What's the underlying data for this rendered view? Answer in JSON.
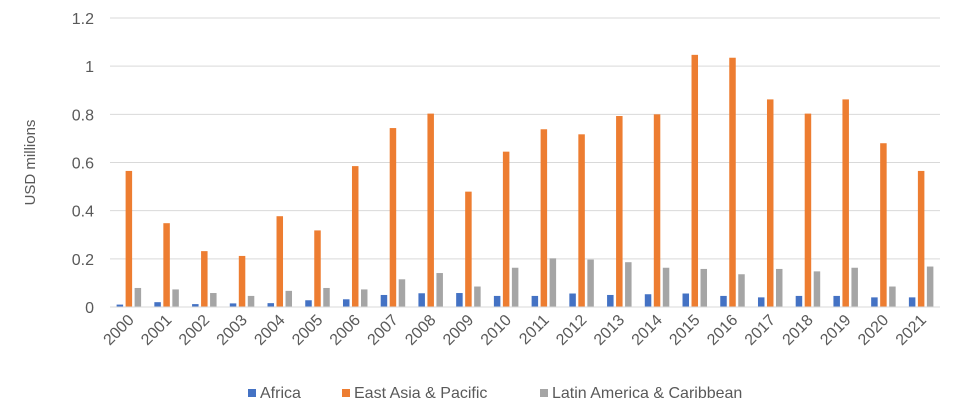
{
  "chart_data": {
    "type": "bar",
    "title": "",
    "xlabel": "",
    "ylabel": "USD millions",
    "ylim": [
      0,
      1.2
    ],
    "yticks": [
      "0",
      "0.2",
      "0.4",
      "0.6",
      "0.8",
      "1",
      "1.2"
    ],
    "ytick_values": [
      0,
      0.2,
      0.4,
      0.6,
      0.8,
      1,
      1.2
    ],
    "grid": true,
    "legend_position": "bottom",
    "categories": [
      "2000",
      "2001",
      "2002",
      "2003",
      "2004",
      "2005",
      "2006",
      "2007",
      "2008",
      "2009",
      "2010",
      "2011",
      "2012",
      "2013",
      "2014",
      "2015",
      "2016",
      "2017",
      "2018",
      "2019",
      "2020",
      "2021"
    ],
    "series": [
      {
        "name": "Africa",
        "color": "#4472C4",
        "values": [
          0.01,
          0.02,
          0.012,
          0.015,
          0.016,
          0.028,
          0.032,
          0.05,
          0.057,
          0.058,
          0.046,
          0.046,
          0.056,
          0.05,
          0.053,
          0.056,
          0.046,
          0.04,
          0.046,
          0.046,
          0.04,
          0.04
        ]
      },
      {
        "name": "East Asia & Pacific",
        "color": "#ED7D31",
        "values": [
          0.565,
          0.348,
          0.232,
          0.212,
          0.377,
          0.318,
          0.585,
          0.743,
          0.803,
          0.479,
          0.645,
          0.738,
          0.717,
          0.793,
          0.8,
          1.047,
          1.035,
          0.862,
          0.803,
          0.862,
          0.68,
          0.565
        ]
      },
      {
        "name": "Latin America & Caribbean",
        "color": "#A5A5A5",
        "values": [
          0.079,
          0.073,
          0.058,
          0.046,
          0.067,
          0.079,
          0.073,
          0.115,
          0.141,
          0.085,
          0.163,
          0.202,
          0.197,
          0.186,
          0.163,
          0.158,
          0.136,
          0.158,
          0.148,
          0.163,
          0.085,
          0.168
        ]
      }
    ]
  }
}
